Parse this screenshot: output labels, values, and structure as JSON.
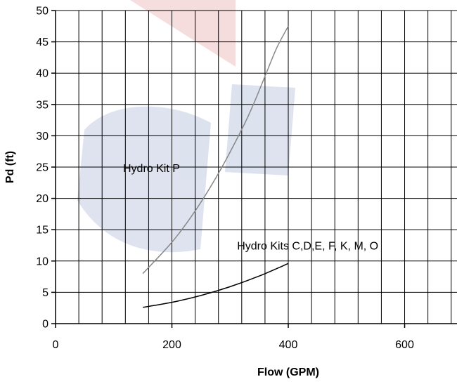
{
  "chart_data": {
    "type": "line",
    "title": "",
    "xlabel": "Flow (GPM)",
    "ylabel": "Pd (ft)",
    "xlim": [
      0,
      690
    ],
    "ylim": [
      0,
      50
    ],
    "x_ticks": [
      0,
      200,
      400,
      600
    ],
    "y_ticks": [
      0,
      5,
      10,
      15,
      20,
      25,
      30,
      35,
      40,
      45,
      50
    ],
    "x_grid_step": 40,
    "y_grid_step": 5,
    "grid": true,
    "series": [
      {
        "name": "Hydro Kit P",
        "color": "#888888",
        "x": [
          150,
          200,
          240,
          280,
          320,
          340,
          360,
          380,
          400
        ],
        "y": [
          8,
          13,
          18,
          24,
          31,
          35,
          39.5,
          44,
          47.5
        ]
      },
      {
        "name": "Hydro Kits C,D,E, F, K, M, O",
        "color": "#000000",
        "x": [
          150,
          200,
          250,
          300,
          350,
          400
        ],
        "y": [
          2.6,
          3.4,
          4.5,
          5.9,
          7.6,
          9.6
        ]
      }
    ],
    "annotations": [
      {
        "text": "Hydro Kit P",
        "x": 116,
        "y": 24.2,
        "anchor": "start"
      },
      {
        "text": "Hydro Kits C,D,E, F, K, M, O",
        "x": 312,
        "y": 11.8,
        "anchor": "start"
      }
    ],
    "colors": {
      "grid": "#000000",
      "axis": "#000000"
    }
  }
}
